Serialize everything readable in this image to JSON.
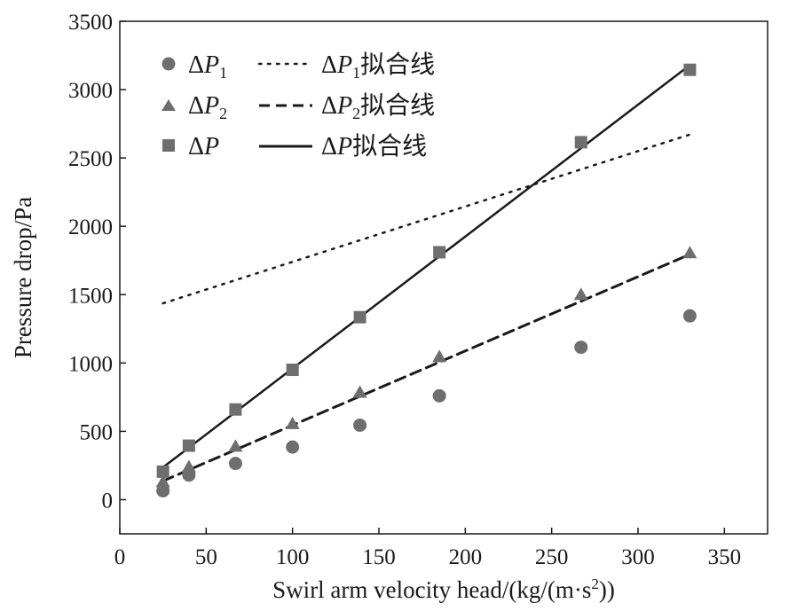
{
  "chart_data": {
    "type": "scatter",
    "xlabel": "Swirl arm velocity head/(kg/(m·s²))",
    "xlabel_parts": {
      "main": "Swirl arm velocity head/(kg/(m·s",
      "sup": "2",
      "end": "))"
    },
    "ylabel": "Pressure drop/Pa",
    "xlim": [
      0,
      375
    ],
    "ylim": [
      -250,
      3500
    ],
    "xticks": [
      0,
      50,
      100,
      150,
      200,
      250,
      300,
      350
    ],
    "yticks": [
      0,
      500,
      1000,
      1500,
      2000,
      2500,
      3000,
      3500
    ],
    "grid": false,
    "legend_position": "top-left",
    "x": [
      25,
      40,
      67,
      100,
      139,
      185,
      267,
      330
    ],
    "series": [
      {
        "name": "ΔP1",
        "label_parts": {
          "delta": "Δ",
          "var": "P",
          "sub": "1"
        },
        "fit_label_parts": {
          "delta": "Δ",
          "var": "P",
          "sub": "1",
          "suffix": "拟合线"
        },
        "marker": "circle",
        "line_style": "dotted",
        "color": "#6e6e6e",
        "values": [
          65,
          180,
          265,
          385,
          545,
          760,
          1115,
          1345
        ],
        "fit": [
          1335,
          4.05
        ]
      },
      {
        "name": "ΔP2",
        "label_parts": {
          "delta": "Δ",
          "var": "P",
          "sub": "2",
          "suffix": ""
        },
        "fit_label_parts": {
          "delta": "Δ",
          "var": "P",
          "sub": "2",
          "suffix": "拟合线"
        },
        "marker": "triangle",
        "line_style": "dashed",
        "color": "#6e6e6e",
        "values": [
          130,
          240,
          390,
          555,
          785,
          1045,
          1500,
          1805
        ],
        "fit": [
          1,
          5.435
        ]
      },
      {
        "name": "ΔP",
        "label_parts": {
          "delta": "Δ",
          "var": "P",
          "sub": "",
          "suffix": ""
        },
        "fit_label_parts": {
          "delta": "Δ",
          "var": "P",
          "sub": "",
          "suffix": "拟合线"
        },
        "marker": "square",
        "line_style": "solid",
        "color": "#6e6e6e",
        "values": [
          205,
          395,
          660,
          950,
          1335,
          1810,
          2615,
          3145
        ],
        "fit": [
          -5,
          9.65
        ]
      }
    ]
  }
}
